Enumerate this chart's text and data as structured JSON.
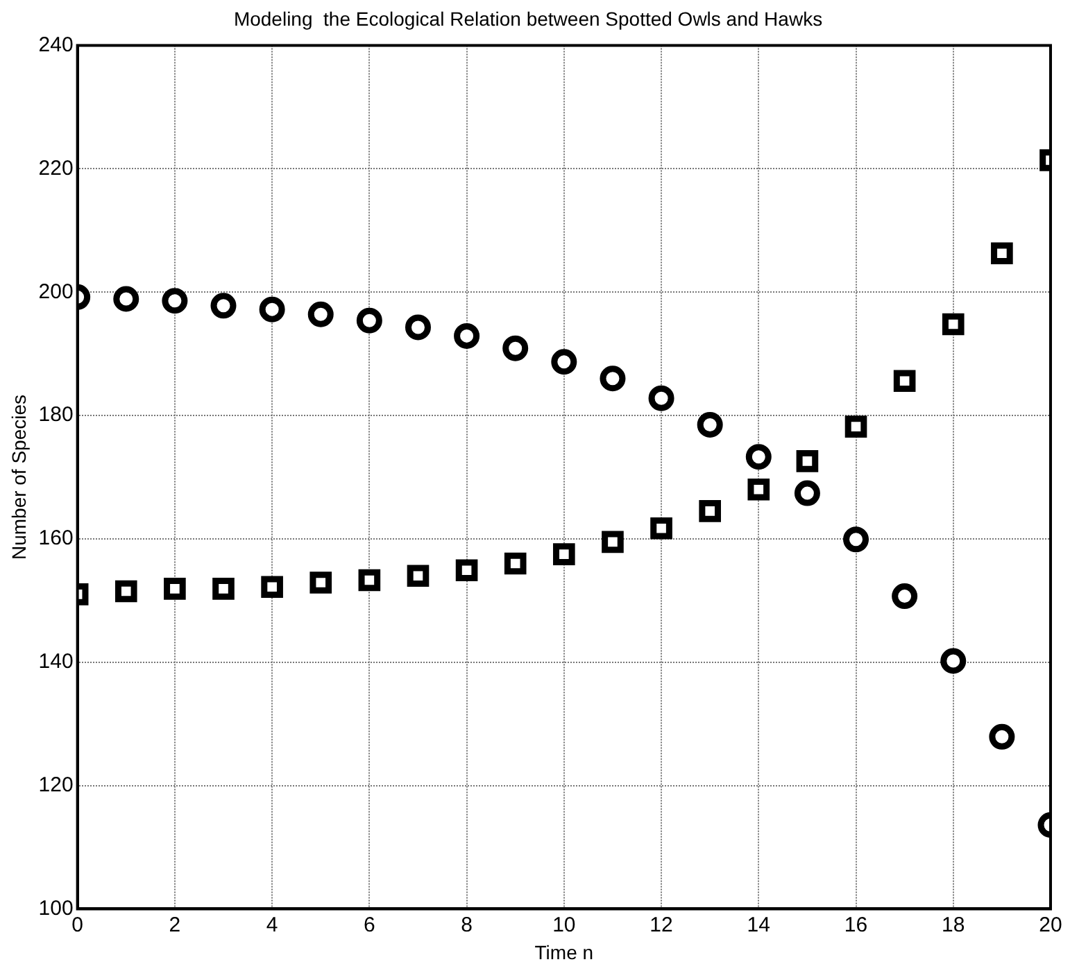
{
  "chart_data": {
    "type": "scatter",
    "title": "Modeling  the Ecological Relation between Spotted Owls and Hawks",
    "xlabel": "Time n",
    "ylabel": "Number of Species",
    "x": [
      0,
      1,
      2,
      3,
      4,
      5,
      6,
      7,
      8,
      9,
      10,
      11,
      12,
      13,
      14,
      15,
      16,
      17,
      18,
      19,
      20
    ],
    "xlim": [
      0,
      20
    ],
    "xticks": [
      0,
      2,
      4,
      6,
      8,
      10,
      12,
      14,
      16,
      18,
      20
    ],
    "ylim": [
      100,
      240
    ],
    "yticks": [
      100,
      120,
      140,
      160,
      180,
      200,
      220,
      240
    ],
    "grid": true,
    "legend": false,
    "series": [
      {
        "color": "#000000",
        "marker": "circle",
        "values": [
          199.2,
          198.9,
          198.6,
          197.8,
          197.2,
          196.4,
          195.4,
          194.3,
          192.9,
          190.9,
          188.7,
          186.0,
          182.8,
          178.5,
          173.3,
          167.4,
          159.9,
          150.7,
          140.2,
          127.9,
          113.6
        ]
      },
      {
        "color": "#000000",
        "marker": "square",
        "values": [
          151.0,
          151.5,
          151.9,
          151.9,
          152.2,
          152.9,
          153.3,
          154.0,
          154.9,
          156.0,
          157.5,
          159.5,
          161.7,
          164.5,
          168.0,
          172.6,
          178.2,
          185.6,
          194.8,
          206.3,
          221.4
        ]
      }
    ]
  }
}
